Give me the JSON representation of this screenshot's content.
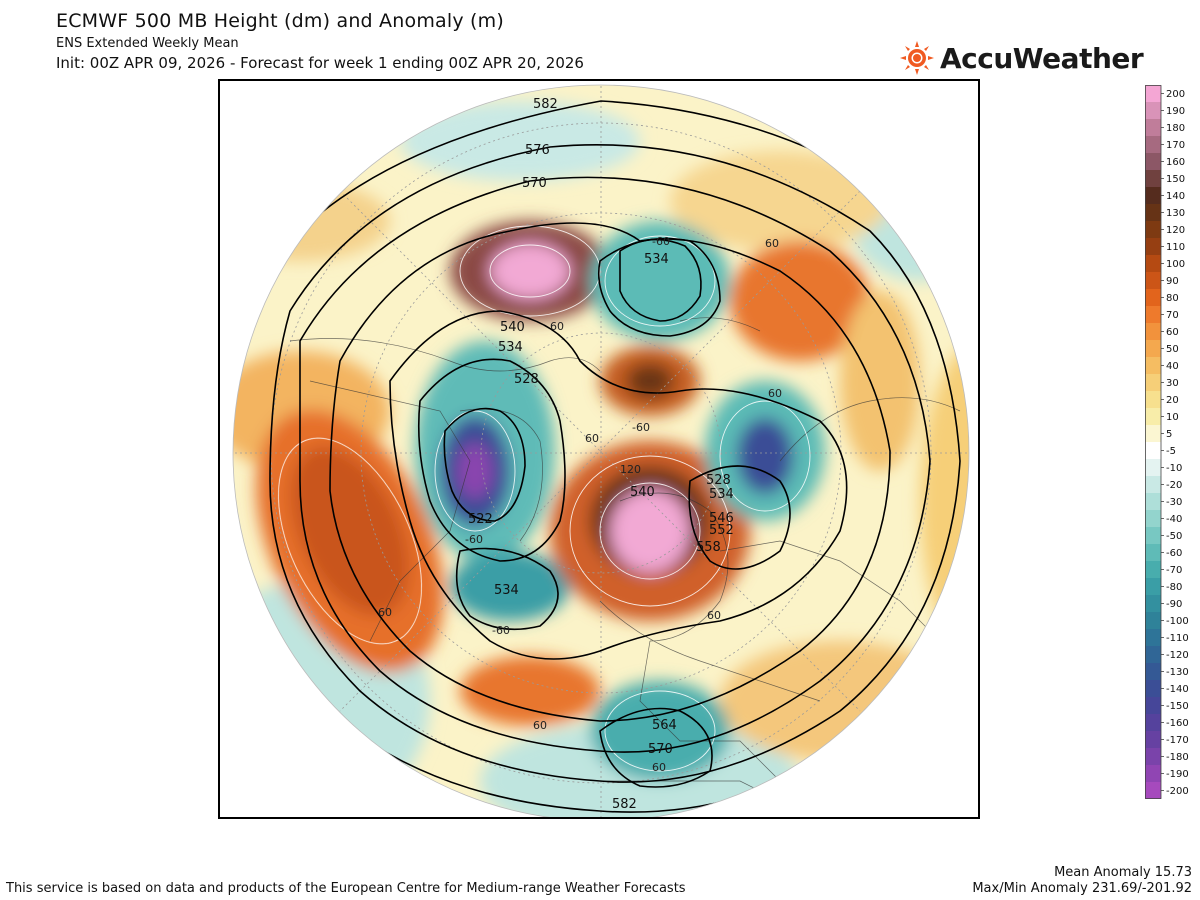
{
  "header": {
    "title": "ECMWF 500 MB Height (dm) and Anomaly (m)",
    "subtitle": "ENS Extended Weekly Mean",
    "init": "Init: 00Z APR 09, 2026 - Forecast for week 1 ending 00Z APR 20, 2026"
  },
  "logo": {
    "text": "AccuWeather",
    "icon": "sun-icon",
    "color": "#f05a22"
  },
  "footer": {
    "credit": "This service is based on data and products of the European Centre for Medium-range Weather Forecasts",
    "mean_anomaly": "Mean Anomaly 15.73",
    "maxmin_anomaly": "Max/Min Anomaly 231.69/-201.92"
  },
  "colorbar": {
    "labels": [
      "200",
      "190",
      "180",
      "170",
      "160",
      "150",
      "140",
      "130",
      "120",
      "110",
      "100",
      "90",
      "80",
      "70",
      "60",
      "50",
      "40",
      "30",
      "20",
      "10",
      "5",
      "-5",
      "-10",
      "-20",
      "-30",
      "-40",
      "-50",
      "-60",
      "-70",
      "-80",
      "-90",
      "-100",
      "-110",
      "-120",
      "-130",
      "-140",
      "-150",
      "-160",
      "-170",
      "-180",
      "-190",
      "-200"
    ],
    "colors": [
      "#f4a6d4",
      "#d993b8",
      "#c07d9a",
      "#a66a80",
      "#8c5766",
      "#70413f",
      "#552c1e",
      "#663316",
      "#7e3a12",
      "#963f12",
      "#b54a12",
      "#cc5517",
      "#e2641c",
      "#ee7a2c",
      "#f2923c",
      "#f4a84e",
      "#f5bd62",
      "#f6cf78",
      "#f7e08e",
      "#f8eda9",
      "#fbf6d2",
      "#ffffff",
      "#e4f3f1",
      "#c9e9e5",
      "#aedfd9",
      "#93d4cd",
      "#78c8c2",
      "#5fbbb7",
      "#48adad",
      "#3a9ea6",
      "#33909f",
      "#2f8299",
      "#2e7498",
      "#306696",
      "#345995",
      "#3b4e96",
      "#464699",
      "#55429d",
      "#6641a2",
      "#7a43aa",
      "#9045b3",
      "#a64abd"
    ]
  },
  "map": {
    "height_contour_labels": [
      "582",
      "576",
      "570",
      "540",
      "534",
      "528",
      "522",
      "534",
      "540",
      "546",
      "552",
      "558",
      "528",
      "534",
      "534",
      "564",
      "570",
      "582"
    ],
    "anomaly_contour_labels": [
      "-60",
      "60",
      "60",
      "60",
      "60",
      "-60",
      "-60",
      "120",
      "60",
      "60",
      "60",
      "-60",
      "60"
    ]
  }
}
